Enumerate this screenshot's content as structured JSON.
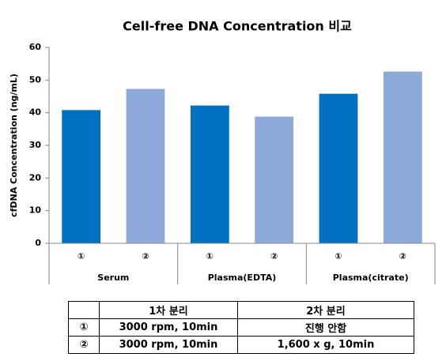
{
  "chart_data": {
    "type": "bar",
    "title": "Cell-free DNA Concentration 비교",
    "y_label": "cfDNA Concentration (ng/mL)",
    "categories": [
      "①",
      "②",
      "①",
      "②",
      "①",
      "②"
    ],
    "groups": [
      "Serum",
      "Plasma(EDTA)",
      "Plasma(citrate)"
    ],
    "values": [
      40.8,
      47.3,
      42.2,
      38.8,
      45.8,
      52.6
    ],
    "colors": [
      "#0070c0",
      "#8eaadb",
      "#0070c0",
      "#8eaadb",
      "#0070c0",
      "#8eaadb"
    ],
    "ylim": [
      0,
      60
    ],
    "yticks": [
      0,
      10,
      20,
      30,
      40,
      50,
      60
    ],
    "grid": false
  },
  "table": {
    "header": [
      "1차 분리",
      "2차 분리"
    ],
    "rows": [
      [
        "①",
        "3000 rpm, 10min",
        "진행 안함"
      ],
      [
        "②",
        "3000 rpm, 10min",
        "1,600 x g, 10min"
      ]
    ]
  }
}
